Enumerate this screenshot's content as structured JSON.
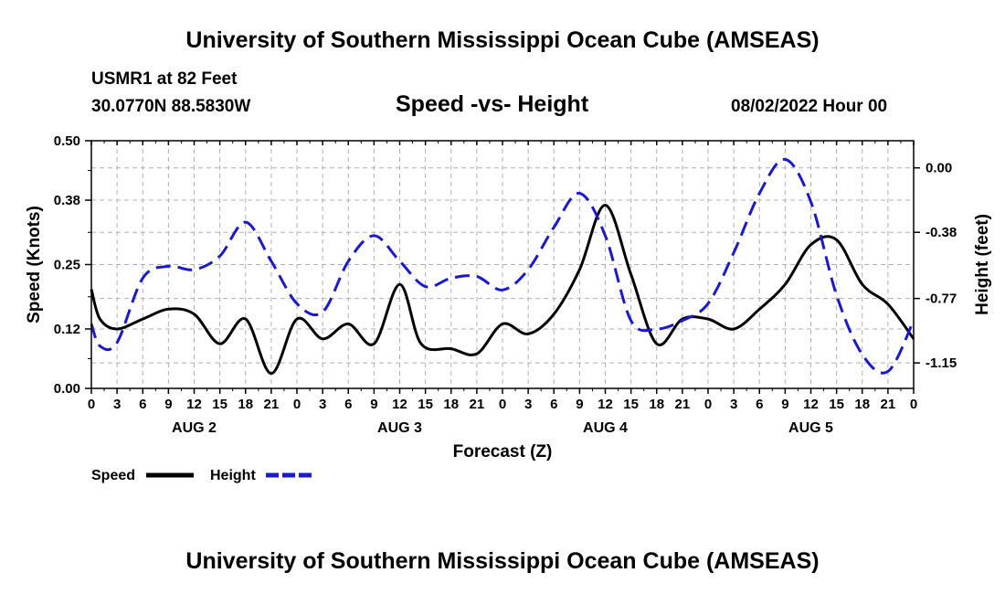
{
  "header": {
    "title": "University of Southern Mississippi Ocean Cube (AMSEAS)",
    "station": "USMR1 at 82 Feet",
    "coords": "30.0770N  88.5830W",
    "chart_title": "Speed -vs- Height",
    "date": "08/02/2022 Hour 00"
  },
  "footer": {
    "title": "University of Southern Mississippi Ocean Cube (AMSEAS)"
  },
  "colors": {
    "speed": "#000000",
    "height": "#1a1acc",
    "grid": "#b0b0b0"
  },
  "chart_data": {
    "type": "line",
    "xlabel": "Forecast (Z)",
    "ylabel": "Speed (Knots)",
    "ylabel_right": "Height (feet)",
    "xlim": [
      0,
      96
    ],
    "ylim": [
      0,
      0.5
    ],
    "ylim_right": [
      -1.3,
      0.16
    ],
    "yticks": [
      "0.00",
      "0.12",
      "0.25",
      "0.38",
      "0.50"
    ],
    "yticks_right": [
      "0.00",
      "-0.38",
      "-0.77",
      "-1.15"
    ],
    "xticks": [
      "0",
      "3",
      "6",
      "9",
      "12",
      "15",
      "18",
      "21",
      "0",
      "3",
      "6",
      "9",
      "12",
      "15",
      "18",
      "21",
      "0",
      "3",
      "6",
      "9",
      "12",
      "15",
      "18",
      "21",
      "0",
      "3",
      "6",
      "9",
      "12",
      "15",
      "18",
      "21",
      "0"
    ],
    "day_labels": [
      "AUG 2",
      "AUG 3",
      "AUG 4",
      "AUG 5"
    ],
    "legend": [
      "Speed",
      "Height"
    ],
    "series": [
      {
        "name": "Speed",
        "axis": "left",
        "x": [
          0,
          1,
          3,
          6,
          9,
          12,
          15,
          18,
          21,
          24,
          27,
          30,
          33,
          36,
          38.5,
          42,
          45,
          48,
          51,
          54,
          57,
          60,
          63,
          66,
          69,
          72,
          75,
          78,
          81,
          84,
          87,
          90,
          93,
          96
        ],
        "values": [
          0.2,
          0.14,
          0.12,
          0.14,
          0.16,
          0.15,
          0.09,
          0.14,
          0.03,
          0.14,
          0.1,
          0.13,
          0.09,
          0.21,
          0.09,
          0.08,
          0.07,
          0.13,
          0.11,
          0.15,
          0.24,
          0.37,
          0.23,
          0.09,
          0.14,
          0.14,
          0.12,
          0.16,
          0.21,
          0.29,
          0.3,
          0.21,
          0.17,
          0.1
        ]
      },
      {
        "name": "Height",
        "axis": "right",
        "x": [
          0,
          1,
          3,
          6,
          9,
          12,
          15,
          18,
          21,
          24,
          27,
          30,
          33,
          36,
          39,
          42,
          45,
          48,
          51,
          54,
          57,
          60,
          63,
          66,
          69,
          72,
          75,
          78,
          81,
          84,
          87,
          90,
          93,
          96
        ],
        "values": [
          -0.92,
          -1.05,
          -1.03,
          -0.65,
          -0.58,
          -0.6,
          -0.52,
          -0.32,
          -0.55,
          -0.8,
          -0.85,
          -0.55,
          -0.4,
          -0.55,
          -0.7,
          -0.65,
          -0.64,
          -0.72,
          -0.6,
          -0.35,
          -0.15,
          -0.4,
          -0.9,
          -0.95,
          -0.9,
          -0.8,
          -0.5,
          -0.15,
          0.05,
          -0.2,
          -0.75,
          -1.1,
          -1.2,
          -0.9
        ]
      }
    ]
  }
}
